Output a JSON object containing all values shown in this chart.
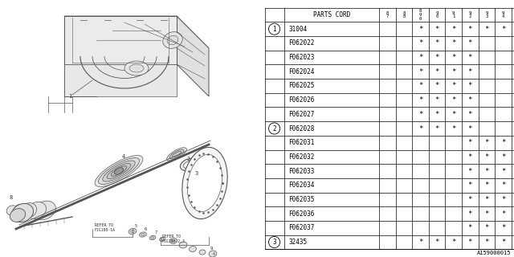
{
  "ref_code": "A159000015",
  "col_headers": [
    "PARTS CORD",
    "8\n7",
    "8\n8",
    "8\n9\n0",
    "9\n0",
    "9\n1",
    "9\n2",
    "9\n3",
    "9\n4"
  ],
  "rows": [
    {
      "num": "1",
      "code": "31004",
      "stars": [
        0,
        0,
        1,
        1,
        1,
        1,
        1,
        1
      ]
    },
    {
      "num": "",
      "code": "F062022",
      "stars": [
        0,
        0,
        1,
        1,
        1,
        1,
        0,
        0
      ]
    },
    {
      "num": "",
      "code": "F062023",
      "stars": [
        0,
        0,
        1,
        1,
        1,
        1,
        0,
        0
      ]
    },
    {
      "num": "",
      "code": "F062024",
      "stars": [
        0,
        0,
        1,
        1,
        1,
        1,
        0,
        0
      ]
    },
    {
      "num": "",
      "code": "F062025",
      "stars": [
        0,
        0,
        1,
        1,
        1,
        1,
        0,
        0
      ]
    },
    {
      "num": "",
      "code": "F062026",
      "stars": [
        0,
        0,
        1,
        1,
        1,
        1,
        0,
        0
      ]
    },
    {
      "num": "",
      "code": "F062027",
      "stars": [
        0,
        0,
        1,
        1,
        1,
        1,
        0,
        0
      ]
    },
    {
      "num": "2",
      "code": "F062028",
      "stars": [
        0,
        0,
        1,
        1,
        1,
        1,
        0,
        0
      ]
    },
    {
      "num": "",
      "code": "F062031",
      "stars": [
        0,
        0,
        0,
        0,
        0,
        1,
        1,
        1
      ]
    },
    {
      "num": "",
      "code": "F062032",
      "stars": [
        0,
        0,
        0,
        0,
        0,
        1,
        1,
        1
      ]
    },
    {
      "num": "",
      "code": "F062033",
      "stars": [
        0,
        0,
        0,
        0,
        0,
        1,
        1,
        1
      ]
    },
    {
      "num": "",
      "code": "F062034",
      "stars": [
        0,
        0,
        0,
        0,
        0,
        1,
        1,
        1
      ]
    },
    {
      "num": "",
      "code": "F062035",
      "stars": [
        0,
        0,
        0,
        0,
        0,
        1,
        1,
        1
      ]
    },
    {
      "num": "",
      "code": "F062036",
      "stars": [
        0,
        0,
        0,
        0,
        0,
        1,
        1,
        1
      ]
    },
    {
      "num": "",
      "code": "F062037",
      "stars": [
        0,
        0,
        0,
        0,
        0,
        1,
        1,
        1
      ]
    },
    {
      "num": "3",
      "code": "32435",
      "stars": [
        0,
        0,
        1,
        1,
        1,
        1,
        1,
        1
      ]
    }
  ],
  "bg_color": "#ffffff",
  "line_color": "#000000",
  "text_color": "#000000",
  "diagram_line_color": "#555555",
  "num_circled": [
    "1",
    "2",
    "3"
  ]
}
